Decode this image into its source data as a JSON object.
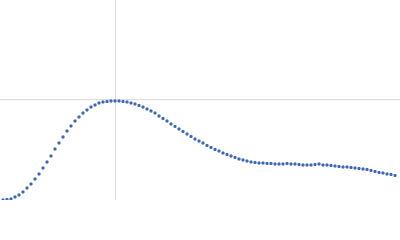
{
  "chart_data": {
    "type": "scatter",
    "color": "#3d68b3",
    "grid": true,
    "xlim": [
      0,
      6
    ],
    "ylim": [
      0,
      2.2
    ],
    "xticks": [
      1.732
    ],
    "yticks": [
      1.104
    ],
    "x": [
      0.045,
      0.105,
      0.165,
      0.225,
      0.285,
      0.345,
      0.405,
      0.465,
      0.525,
      0.585,
      0.645,
      0.705,
      0.765,
      0.825,
      0.885,
      0.945,
      1.005,
      1.065,
      1.125,
      1.185,
      1.245,
      1.305,
      1.365,
      1.425,
      1.485,
      1.545,
      1.605,
      1.665,
      1.725,
      1.785,
      1.845,
      1.905,
      1.965,
      2.025,
      2.085,
      2.145,
      2.205,
      2.265,
      2.325,
      2.385,
      2.445,
      2.505,
      2.565,
      2.625,
      2.685,
      2.745,
      2.805,
      2.865,
      2.925,
      2.985,
      3.045,
      3.105,
      3.165,
      3.225,
      3.285,
      3.345,
      3.405,
      3.465,
      3.525,
      3.585,
      3.645,
      3.705,
      3.765,
      3.825,
      3.885,
      3.945,
      4.005,
      4.065,
      4.125,
      4.185,
      4.245,
      4.305,
      4.365,
      4.425,
      4.485,
      4.545,
      4.605,
      4.665,
      4.725,
      4.785,
      4.845,
      4.905,
      4.965,
      5.025,
      5.085,
      5.145,
      5.205,
      5.265,
      5.325,
      5.385,
      5.445,
      5.505,
      5.565,
      5.625,
      5.685,
      5.745,
      5.805,
      5.865,
      5.925
    ],
    "values": [
      0,
      0.006,
      0.011,
      0.033,
      0.055,
      0.088,
      0.132,
      0.176,
      0.231,
      0.286,
      0.352,
      0.418,
      0.484,
      0.561,
      0.627,
      0.693,
      0.759,
      0.814,
      0.869,
      0.913,
      0.957,
      0.99,
      1.023,
      1.045,
      1.067,
      1.078,
      1.084,
      1.089,
      1.089,
      1.089,
      1.084,
      1.078,
      1.067,
      1.056,
      1.04,
      1.023,
      1.001,
      0.979,
      0.957,
      0.924,
      0.897,
      0.869,
      0.836,
      0.809,
      0.781,
      0.754,
      0.726,
      0.699,
      0.671,
      0.649,
      0.627,
      0.6,
      0.578,
      0.556,
      0.539,
      0.517,
      0.501,
      0.484,
      0.468,
      0.451,
      0.44,
      0.429,
      0.418,
      0.413,
      0.407,
      0.407,
      0.402,
      0.402,
      0.396,
      0.396,
      0.396,
      0.402,
      0.396,
      0.396,
      0.391,
      0.385,
      0.385,
      0.385,
      0.391,
      0.396,
      0.385,
      0.385,
      0.38,
      0.374,
      0.369,
      0.363,
      0.363,
      0.358,
      0.352,
      0.347,
      0.341,
      0.336,
      0.325,
      0.314,
      0.303,
      0.297,
      0.286,
      0.281,
      0.27
    ]
  }
}
